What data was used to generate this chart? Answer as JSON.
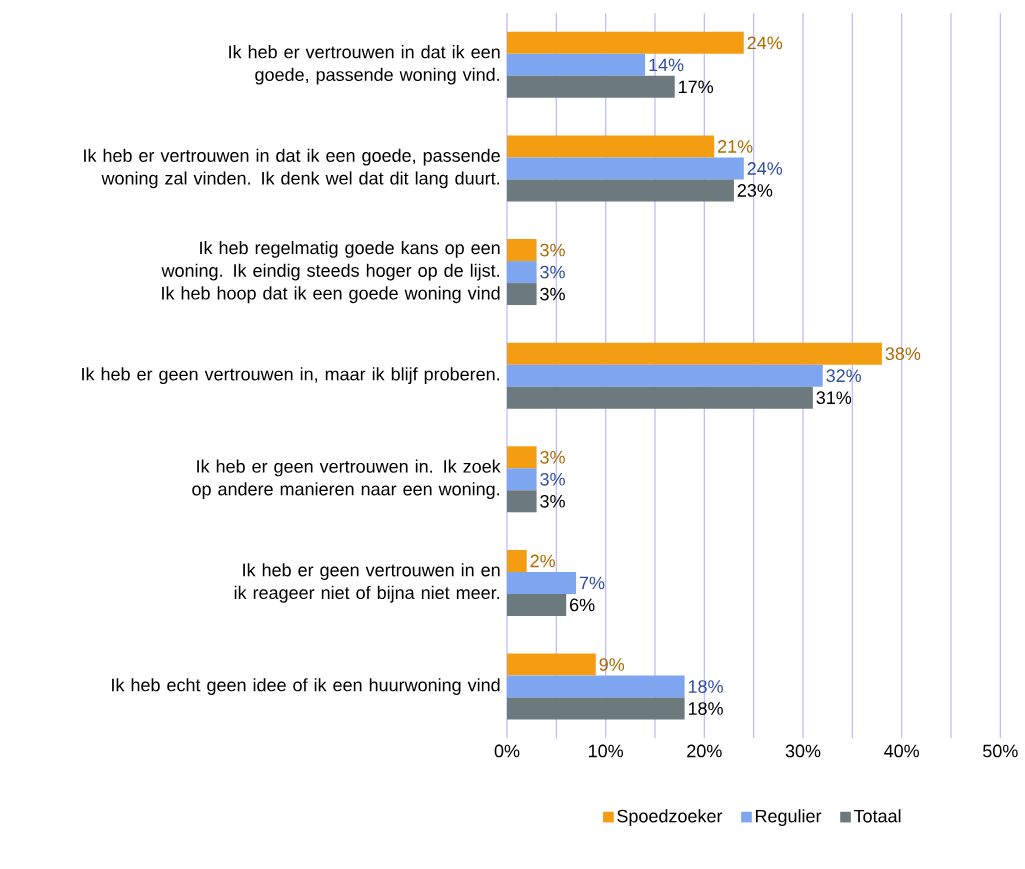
{
  "chart_data": {
    "type": "bar",
    "orientation": "horizontal",
    "categories": [
      "Ik heb er vertrouwen in dat ik een goede, passende woning vind.",
      "Ik heb er vertrouwen in dat ik een goede, passende woning zal vinden. Ik denk wel dat dit lang duurt.",
      "Ik heb regelmatig goede kans op een woning. Ik eindig steeds hoger op de lijst. Ik heb hoop dat ik een goede woning vind",
      "Ik heb er geen vertrouwen in, maar ik blijf proberen.",
      "Ik heb er geen vertrouwen in. Ik zoek op andere manieren naar een woning.",
      "Ik heb er geen vertrouwen in en ik reageer niet of bijna niet meer.",
      "Ik heb echt geen idee of ik een huurwoning vind"
    ],
    "series": [
      {
        "name": "Spoedzoeker",
        "color": "#f59d12",
        "values": [
          24,
          21,
          3,
          38,
          3,
          2,
          9
        ],
        "value_labels": [
          "24%",
          "21%",
          "3%",
          "38%",
          "3%",
          "2%",
          "9%"
        ]
      },
      {
        "name": "Regulier",
        "color": "#7ea5ef",
        "values": [
          14,
          24,
          3,
          32,
          3,
          7,
          18
        ],
        "value_labels": [
          "14%",
          "24%",
          "3%",
          "32%",
          "3%",
          "7%",
          "18%"
        ]
      },
      {
        "name": "Totaal",
        "color": "#6c7a7e",
        "values": [
          17,
          23,
          3,
          31,
          3,
          6,
          18
        ],
        "value_labels": [
          "17%",
          "23%",
          "3%",
          "31%",
          "3%",
          "6%",
          "18%"
        ]
      }
    ],
    "xlim": [
      0,
      50
    ],
    "xticks": [
      {
        "value": 0,
        "label": "0%"
      },
      {
        "value": 5,
        "label": null
      },
      {
        "value": 10,
        "label": "10%"
      },
      {
        "value": 15,
        "label": null
      },
      {
        "value": 20,
        "label": "20%"
      },
      {
        "value": 25,
        "label": null
      },
      {
        "value": 30,
        "label": "30%"
      },
      {
        "value": 35,
        "label": null
      },
      {
        "value": 40,
        "label": "40%"
      },
      {
        "value": 45,
        "label": null
      },
      {
        "value": 50,
        "label": "50%"
      }
    ],
    "grid": "x",
    "legend": "bottom"
  }
}
